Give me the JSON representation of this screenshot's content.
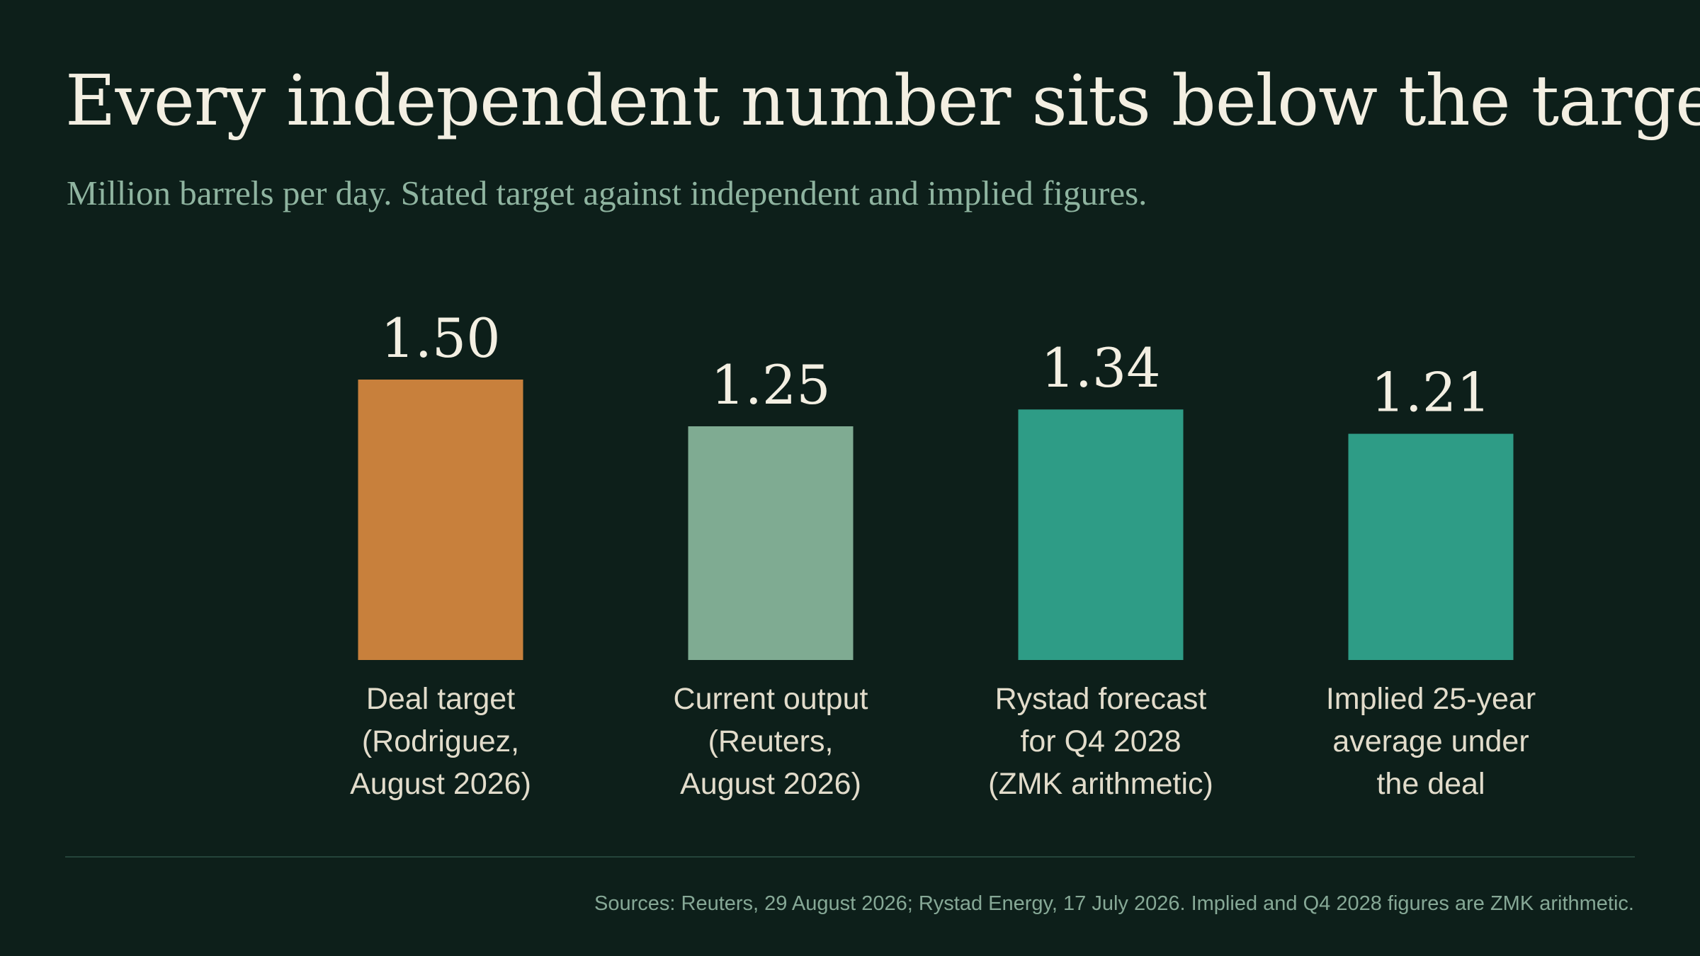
{
  "title": "Every independent number sits below the target",
  "subtitle": "Million barrels per day. Stated target against independent and implied figures.",
  "source": "Sources: Reuters, 29 August 2026; Rystad Energy, 17 July 2026. Implied and Q4 2028 figures are ZMK arithmetic.",
  "colors": {
    "background": "#0d1f1a",
    "target": "#c8803c",
    "current": "#7fab92",
    "derived": "#2e9c86",
    "value_label": "#f3efe2",
    "category_label": "#e2dccb"
  },
  "chart_data": {
    "type": "bar",
    "title": "Every independent number sits below the target",
    "subtitle": "Million barrels per day. Stated target against independent and implied figures.",
    "ylim": [
      0,
      1.5
    ],
    "grid": false,
    "categories": [
      "Deal target\n(Rodriguez,\nAugust 2026)",
      "Current output\n(Reuters,\nAugust 2026)",
      "Rystad forecast\nfor Q4 2028\n(ZMK arithmetic)",
      "Implied 25-year\naverage under\nthe deal"
    ],
    "values": [
      1.5,
      1.25,
      1.34,
      1.21
    ],
    "value_labels": [
      "1.50",
      "1.25",
      "1.34",
      "1.21"
    ],
    "bar_colors": [
      "#c8803c",
      "#7fab92",
      "#2e9c86",
      "#2e9c86"
    ]
  }
}
